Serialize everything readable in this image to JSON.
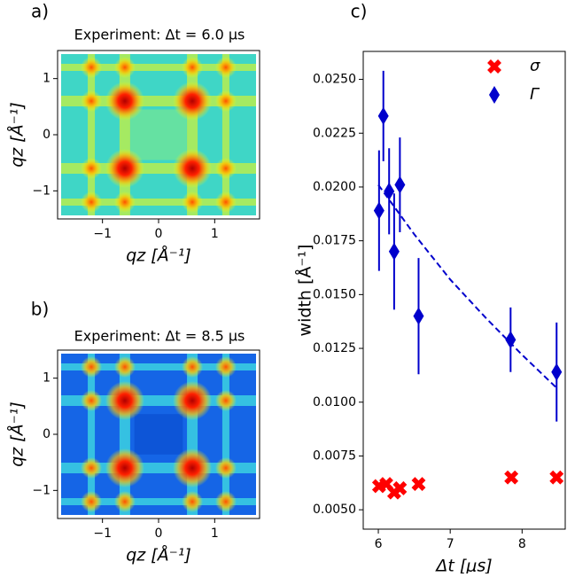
{
  "chart_data": [
    {
      "type": "heatmap",
      "panel_label": "a)",
      "title": "Experiment: Δt = 6.0 μs",
      "xlabel": "qz [Å⁻¹]",
      "ylabel": "qz [Å⁻¹]",
      "xlim": [
        -1.8,
        1.8
      ],
      "ylim": [
        -1.5,
        1.5
      ],
      "xticks": [
        {
          "value": -1,
          "label": "−1"
        },
        0,
        1
      ],
      "yticks": [
        {
          "value": -1,
          "label": "−1"
        },
        0,
        1
      ]
    },
    {
      "type": "heatmap",
      "panel_label": "b)",
      "title": "Experiment: Δt = 8.5 μs",
      "xlabel": "qz [Å⁻¹]",
      "ylabel": "qz [Å⁻¹]",
      "xlim": [
        -1.8,
        1.8
      ],
      "ylim": [
        -1.5,
        1.5
      ],
      "xticks": [
        {
          "value": -1,
          "label": "−1"
        },
        0,
        1
      ],
      "yticks": [
        {
          "value": -1,
          "label": "−1"
        },
        0,
        1
      ]
    },
    {
      "type": "scatter",
      "panel_label": "c)",
      "xlabel": "Δt [μs]",
      "ylabel": "width [Å⁻¹]",
      "xlim": [
        5.79,
        8.6
      ],
      "ylim": [
        0.0041,
        0.0263
      ],
      "xticks": [
        6,
        7,
        8
      ],
      "yticks": [
        {
          "value": 0.005,
          "label": "0.0050"
        },
        {
          "value": 0.0075,
          "label": "0.0075"
        },
        {
          "value": 0.01,
          "label": "0.0100"
        },
        {
          "value": 0.0125,
          "label": "0.0125"
        },
        {
          "value": 0.015,
          "label": "0.0150"
        },
        {
          "value": 0.0175,
          "label": "0.0175"
        },
        {
          "value": 0.02,
          "label": "0.0200"
        },
        {
          "value": 0.0225,
          "label": "0.0225"
        },
        {
          "value": 0.025,
          "label": "0.0250"
        }
      ],
      "series": [
        {
          "name": "σ",
          "color": "#ff0000",
          "marker": "x",
          "x": [
            6.01,
            6.11,
            6.22,
            6.3,
            6.56,
            7.85,
            8.48
          ],
          "values": [
            0.0061,
            0.0062,
            0.0058,
            0.006,
            0.0062,
            0.0065,
            0.0065
          ]
        },
        {
          "name": "Γ",
          "color": "#0000cc",
          "marker": "diamond",
          "x": [
            6.01,
            6.07,
            6.15,
            6.22,
            6.3,
            6.56,
            7.84,
            8.48
          ],
          "values": [
            0.0189,
            0.0233,
            0.0198,
            0.017,
            0.0201,
            0.014,
            0.0129,
            0.0114
          ],
          "errors": [
            0.0028,
            0.0021,
            0.002,
            0.0027,
            0.0022,
            0.0027,
            0.0015,
            0.0023
          ]
        }
      ],
      "fit": {
        "color": "#0000cc",
        "linestyle": "dashed",
        "x": [
          6.0,
          6.5,
          7.0,
          7.5,
          8.0,
          8.5
        ],
        "values": [
          0.0201,
          0.0178,
          0.0157,
          0.0139,
          0.0122,
          0.0106
        ]
      },
      "legend": "upper right"
    }
  ]
}
